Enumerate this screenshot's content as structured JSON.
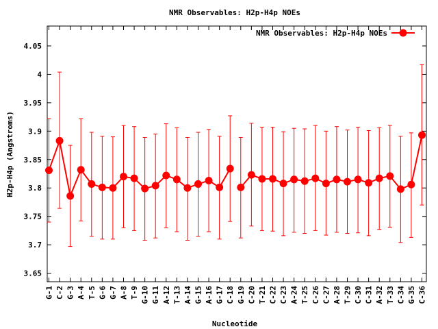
{
  "chart_data": {
    "type": "line",
    "title": "NMR Observables: H2p-H4p NOEs",
    "xlabel": "Nucleotide",
    "ylabel": "H2p-H4p (Angstroms)",
    "ylim": [
      3.635,
      4.085
    ],
    "yticks": [
      "3.65",
      "3.7",
      "3.75",
      "3.8",
      "3.85",
      "3.9",
      "3.95",
      "4",
      "4.05"
    ],
    "legend_position": "top-right",
    "categories": [
      "G-1",
      "C-2",
      "G-3",
      "A-4",
      "T-5",
      "G-6",
      "G-7",
      "A-8",
      "T-9",
      "G-10",
      "G-11",
      "A-12",
      "T-13",
      "A-14",
      "G-15",
      "A-16",
      "G-17",
      "C-18",
      "G-19",
      "C-20",
      "T-21",
      "C-22",
      "C-23",
      "A-24",
      "T-25",
      "C-26",
      "C-27",
      "A-28",
      "T-29",
      "C-30",
      "C-31",
      "A-32",
      "T-33",
      "C-34",
      "G-35",
      "C-36"
    ],
    "series": [
      {
        "name": "NMR Observables: H2p-H4p NOEs",
        "color": "#ff0000",
        "segments": [
          [
            0,
            17
          ],
          [
            18,
            35
          ]
        ],
        "values": [
          3.831,
          3.883,
          3.786,
          3.832,
          3.807,
          3.801,
          3.8,
          3.82,
          3.817,
          3.799,
          3.804,
          3.822,
          3.815,
          3.8,
          3.807,
          3.813,
          3.801,
          3.834,
          3.801,
          3.823,
          3.816,
          3.816,
          3.808,
          3.815,
          3.812,
          3.817,
          3.808,
          3.815,
          3.811,
          3.815,
          3.809,
          3.817,
          3.821,
          3.798,
          3.806,
          3.893
        ],
        "err_low": [
          3.74,
          3.764,
          3.697,
          3.742,
          3.715,
          3.71,
          3.71,
          3.73,
          3.725,
          3.708,
          3.712,
          3.73,
          3.723,
          3.708,
          3.715,
          3.723,
          3.71,
          3.741,
          3.712,
          3.733,
          3.725,
          3.724,
          3.716,
          3.722,
          3.72,
          3.725,
          3.717,
          3.722,
          3.72,
          3.721,
          3.716,
          3.727,
          3.731,
          3.704,
          3.713,
          3.77
        ],
        "err_high": [
          3.922,
          4.004,
          3.875,
          3.922,
          3.898,
          3.891,
          3.89,
          3.91,
          3.908,
          3.889,
          3.895,
          3.913,
          3.906,
          3.889,
          3.898,
          3.903,
          3.891,
          3.927,
          3.889,
          3.914,
          3.907,
          3.907,
          3.899,
          3.905,
          3.904,
          3.91,
          3.9,
          3.908,
          3.902,
          3.907,
          3.901,
          3.906,
          3.91,
          3.891,
          3.897,
          4.017
        ]
      }
    ]
  }
}
